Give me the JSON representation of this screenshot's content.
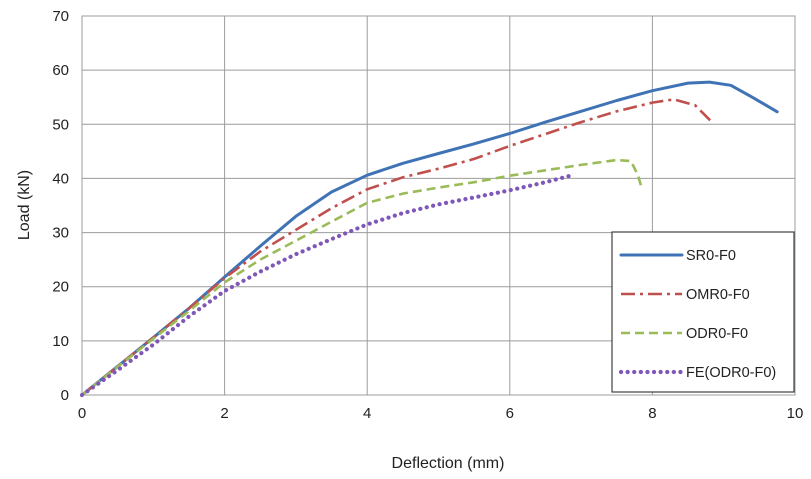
{
  "chart_data": {
    "type": "line",
    "title": "",
    "xlabel": "Deflection (mm)",
    "ylabel": "Load (kN)",
    "xlim": [
      0,
      10
    ],
    "ylim": [
      0,
      70
    ],
    "xticks": [
      0,
      2,
      4,
      6,
      8,
      10
    ],
    "yticks": [
      0,
      10,
      20,
      30,
      40,
      50,
      60,
      70
    ],
    "grid": true,
    "legend_position": "bottom-right",
    "series": [
      {
        "name": "SR0-F0",
        "color": "#3f73b5",
        "style": "solid",
        "points": [
          [
            0,
            0
          ],
          [
            0.5,
            5.3
          ],
          [
            1,
            10.6
          ],
          [
            1.5,
            16
          ],
          [
            2,
            21.8
          ],
          [
            2.5,
            27.5
          ],
          [
            3,
            33
          ],
          [
            3.5,
            37.5
          ],
          [
            4,
            40.6
          ],
          [
            4.5,
            42.8
          ],
          [
            5,
            44.6
          ],
          [
            5.5,
            46.4
          ],
          [
            6,
            48.3
          ],
          [
            6.5,
            50.4
          ],
          [
            7,
            52.4
          ],
          [
            7.5,
            54.4
          ],
          [
            8,
            56.2
          ],
          [
            8.5,
            57.6
          ],
          [
            8.8,
            57.8
          ],
          [
            9.1,
            57.2
          ],
          [
            9.4,
            55
          ],
          [
            9.75,
            52.3
          ]
        ]
      },
      {
        "name": "OMR0-F0",
        "color": "#c0504d",
        "style": "dashdot",
        "points": [
          [
            0,
            0
          ],
          [
            0.5,
            5.3
          ],
          [
            1,
            10.6
          ],
          [
            1.5,
            16
          ],
          [
            2,
            21.6
          ],
          [
            2.5,
            26.5
          ],
          [
            3,
            30.5
          ],
          [
            3.5,
            34.5
          ],
          [
            4,
            38
          ],
          [
            4.5,
            40.2
          ],
          [
            5,
            41.8
          ],
          [
            5.5,
            43.6
          ],
          [
            6,
            46
          ],
          [
            6.5,
            48.2
          ],
          [
            7,
            50.4
          ],
          [
            7.5,
            52.4
          ],
          [
            8,
            54
          ],
          [
            8.3,
            54.6
          ],
          [
            8.6,
            53.5
          ],
          [
            8.85,
            50.2
          ]
        ]
      },
      {
        "name": "ODR0-F0",
        "color": "#9bbb59",
        "style": "dashed",
        "points": [
          [
            0,
            0
          ],
          [
            0.5,
            5.2
          ],
          [
            1,
            10.4
          ],
          [
            1.5,
            15.5
          ],
          [
            2,
            20.8
          ],
          [
            2.5,
            25
          ],
          [
            3,
            28.5
          ],
          [
            3.5,
            32
          ],
          [
            4,
            35.5
          ],
          [
            4.5,
            37.2
          ],
          [
            5,
            38.3
          ],
          [
            5.5,
            39.3
          ],
          [
            6,
            40.5
          ],
          [
            6.5,
            41.5
          ],
          [
            7,
            42.5
          ],
          [
            7.5,
            43.4
          ],
          [
            7.7,
            43.2
          ],
          [
            7.8,
            40.5
          ],
          [
            7.85,
            38.2
          ]
        ]
      },
      {
        "name": "FE(ODR0-F0)",
        "color": "#7e57b8",
        "style": "dotted",
        "points": [
          [
            0,
            0
          ],
          [
            0.5,
            4.6
          ],
          [
            1,
            9.3
          ],
          [
            1.5,
            14.5
          ],
          [
            2,
            19.2
          ],
          [
            2.5,
            22.8
          ],
          [
            3,
            26
          ],
          [
            3.5,
            28.8
          ],
          [
            4,
            31.5
          ],
          [
            4.5,
            33.6
          ],
          [
            5,
            35.2
          ],
          [
            5.5,
            36.5
          ],
          [
            6,
            37.8
          ],
          [
            6.5,
            39.3
          ],
          [
            6.85,
            40.5
          ]
        ]
      }
    ]
  }
}
